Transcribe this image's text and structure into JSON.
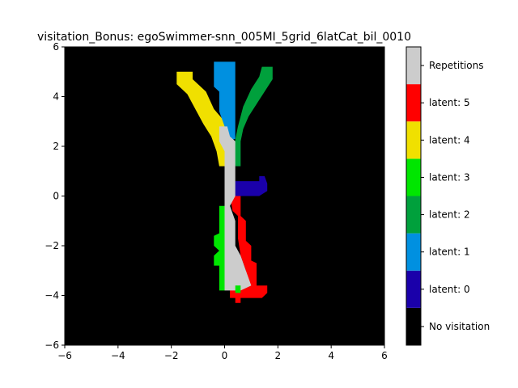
{
  "chart_data": {
    "type": "heatmap",
    "title": "visitation_Bonus: egoSwimmer-snn_005MI_5grid_6latCat_bil_0010",
    "xlabel": "",
    "ylabel": "",
    "xlim": [
      -6,
      6
    ],
    "ylim": [
      -6,
      6
    ],
    "grid": false,
    "cell_size": 0.2,
    "x_ticks": [
      "−6",
      "−4",
      "−2",
      "0",
      "2",
      "4",
      "6"
    ],
    "y_ticks": [
      "−6",
      "−4",
      "−2",
      "0",
      "2",
      "4",
      "6"
    ],
    "categories": [
      {
        "label": "No visitation",
        "color": "#000000"
      },
      {
        "label": "latent: 0",
        "color": "#1a00aa"
      },
      {
        "label": "latent: 1",
        "color": "#0090e0"
      },
      {
        "label": "latent: 2",
        "color": "#00a03c"
      },
      {
        "label": "latent: 3",
        "color": "#00e600"
      },
      {
        "label": "latent: 4",
        "color": "#f0e000"
      },
      {
        "label": "latent: 5",
        "color": "#ff0000"
      },
      {
        "label": "Repetitions",
        "color": "#cccccc"
      }
    ],
    "regions": [
      {
        "category": "latent: 4",
        "points": [
          [
            -1.8,
            5.0
          ],
          [
            -1.2,
            5.0
          ],
          [
            -1.2,
            4.7
          ],
          [
            -0.7,
            4.2
          ],
          [
            -0.4,
            3.5
          ],
          [
            0.0,
            3.0
          ],
          [
            0.0,
            1.2
          ],
          [
            -0.2,
            1.2
          ],
          [
            -0.3,
            1.8
          ],
          [
            -0.5,
            2.4
          ],
          [
            -0.8,
            2.9
          ],
          [
            -1.1,
            3.5
          ],
          [
            -1.4,
            4.1
          ],
          [
            -1.8,
            4.5
          ]
        ]
      },
      {
        "category": "latent: 1",
        "points": [
          [
            -0.4,
            5.4
          ],
          [
            0.4,
            5.4
          ],
          [
            0.4,
            2.3
          ],
          [
            0.1,
            2.2
          ],
          [
            0.0,
            2.8
          ],
          [
            -0.2,
            3.4
          ],
          [
            -0.2,
            4.2
          ],
          [
            -0.4,
            4.4
          ]
        ]
      },
      {
        "category": "latent: 2",
        "points": [
          [
            1.4,
            5.2
          ],
          [
            1.8,
            5.2
          ],
          [
            1.8,
            4.7
          ],
          [
            1.5,
            4.2
          ],
          [
            1.2,
            3.7
          ],
          [
            0.9,
            3.2
          ],
          [
            0.7,
            2.7
          ],
          [
            0.6,
            2.2
          ],
          [
            0.6,
            1.2
          ],
          [
            0.4,
            1.2
          ],
          [
            0.35,
            2.0
          ],
          [
            0.5,
            2.8
          ],
          [
            0.7,
            3.6
          ],
          [
            1.0,
            4.3
          ],
          [
            1.3,
            4.8
          ]
        ]
      },
      {
        "category": "latent: 0",
        "points": [
          [
            0.4,
            0.6
          ],
          [
            1.3,
            0.6
          ],
          [
            1.3,
            0.8
          ],
          [
            1.5,
            0.8
          ],
          [
            1.6,
            0.5
          ],
          [
            1.6,
            0.2
          ],
          [
            1.3,
            0.0
          ],
          [
            0.4,
            0.0
          ]
        ]
      },
      {
        "category": "latent: 3",
        "points": [
          [
            -0.2,
            -0.4
          ],
          [
            0.0,
            -0.4
          ],
          [
            0.0,
            -3.8
          ],
          [
            -0.2,
            -3.8
          ],
          [
            -0.2,
            -2.8
          ],
          [
            -0.4,
            -2.8
          ],
          [
            -0.4,
            -2.4
          ],
          [
            -0.2,
            -2.2
          ],
          [
            -0.4,
            -2.0
          ],
          [
            -0.4,
            -1.6
          ],
          [
            -0.2,
            -1.5
          ]
        ]
      },
      {
        "category": "latent: 5",
        "points": [
          [
            0.2,
            0.0
          ],
          [
            0.6,
            0.0
          ],
          [
            0.6,
            -0.8
          ],
          [
            0.8,
            -1.0
          ],
          [
            0.8,
            -1.8
          ],
          [
            1.0,
            -2.0
          ],
          [
            1.0,
            -2.6
          ],
          [
            1.2,
            -2.7
          ],
          [
            1.2,
            -3.6
          ],
          [
            1.6,
            -3.6
          ],
          [
            1.6,
            -3.9
          ],
          [
            1.4,
            -4.1
          ],
          [
            0.6,
            -4.1
          ],
          [
            0.6,
            -4.3
          ],
          [
            0.4,
            -4.3
          ],
          [
            0.4,
            -4.1
          ],
          [
            0.2,
            -4.1
          ],
          [
            0.2,
            -3.8
          ],
          [
            0.6,
            -3.6
          ],
          [
            0.8,
            -3.0
          ],
          [
            0.6,
            -2.4
          ],
          [
            0.5,
            -1.7
          ],
          [
            0.5,
            -0.8
          ],
          [
            0.3,
            -0.6
          ]
        ]
      },
      {
        "category": "Repetitions",
        "points": [
          [
            -0.2,
            2.8
          ],
          [
            0.1,
            2.8
          ],
          [
            0.2,
            2.4
          ],
          [
            0.4,
            2.2
          ],
          [
            0.4,
            0.0
          ],
          [
            0.2,
            -0.4
          ],
          [
            0.4,
            -1.0
          ],
          [
            0.4,
            -2.0
          ],
          [
            0.6,
            -2.4
          ],
          [
            0.8,
            -3.0
          ],
          [
            1.0,
            -3.6
          ],
          [
            0.6,
            -3.8
          ],
          [
            0.0,
            -3.8
          ],
          [
            0.0,
            -2.8
          ],
          [
            0.0,
            -1.5
          ],
          [
            0.0,
            0.0
          ],
          [
            0.0,
            1.8
          ],
          [
            -0.2,
            2.2
          ]
        ]
      },
      {
        "category": "latent: 3",
        "points": [
          [
            0.4,
            -3.6
          ],
          [
            0.6,
            -3.6
          ],
          [
            0.6,
            -3.9
          ],
          [
            0.4,
            -3.9
          ]
        ]
      }
    ]
  }
}
